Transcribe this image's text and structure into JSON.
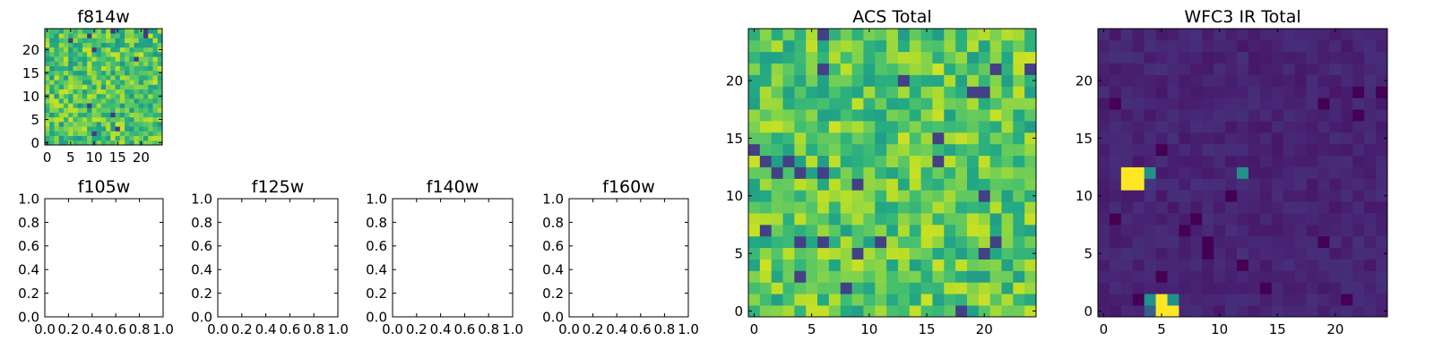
{
  "chart_data": [
    {
      "type": "heatmap",
      "title": "f814w",
      "xlabel": "",
      "ylabel": "",
      "xlim": [
        -0.5,
        24.5
      ],
      "ylim": [
        -0.5,
        24.5
      ],
      "xticks": [
        "0",
        "5",
        "10",
        "15",
        "20"
      ],
      "yticks": [
        "0",
        "5",
        "10",
        "15",
        "20"
      ],
      "colormap": "viridis",
      "grid": 25,
      "seed": 11,
      "background": 0.72,
      "noise": 0.2,
      "hotspots": []
    },
    {
      "type": "empty",
      "title": "f105w",
      "xlim": [
        0,
        1
      ],
      "ylim": [
        0,
        1
      ],
      "xticks": [
        "0.0",
        "0.2",
        "0.4",
        "0.6",
        "0.8",
        "1.0"
      ],
      "yticks": [
        "0.0",
        "0.2",
        "0.4",
        "0.6",
        "0.8",
        "1.0"
      ]
    },
    {
      "type": "empty",
      "title": "f125w",
      "xlim": [
        0,
        1
      ],
      "ylim": [
        0,
        1
      ],
      "xticks": [
        "0.0",
        "0.2",
        "0.4",
        "0.6",
        "0.8",
        "1.0"
      ],
      "yticks": [
        "0.0",
        "0.2",
        "0.4",
        "0.6",
        "0.8",
        "1.0"
      ]
    },
    {
      "type": "empty",
      "title": "f140w",
      "xlim": [
        0,
        1
      ],
      "ylim": [
        0,
        1
      ],
      "xticks": [
        "0.0",
        "0.2",
        "0.4",
        "0.6",
        "0.8",
        "1.0"
      ],
      "yticks": [
        "0.0",
        "0.2",
        "0.4",
        "0.6",
        "0.8",
        "1.0"
      ]
    },
    {
      "type": "empty",
      "title": "f160w",
      "xlim": [
        0,
        1
      ],
      "ylim": [
        0,
        1
      ],
      "xticks": [
        "0.0",
        "0.2",
        "0.4",
        "0.6",
        "0.8",
        "1.0"
      ],
      "yticks": [
        "0.0",
        "0.2",
        "0.4",
        "0.6",
        "0.8",
        "1.0"
      ]
    },
    {
      "type": "heatmap",
      "title": "ACS Total",
      "xlabel": "",
      "ylabel": "",
      "xlim": [
        -0.5,
        24.5
      ],
      "ylim": [
        -0.5,
        24.5
      ],
      "xticks": [
        "0",
        "5",
        "10",
        "15",
        "20"
      ],
      "yticks": [
        "0",
        "5",
        "10",
        "15",
        "20"
      ],
      "colormap": "viridis",
      "grid": 25,
      "seed": 29,
      "background": 0.74,
      "noise": 0.19,
      "hotspots": []
    },
    {
      "type": "heatmap",
      "title": "WFC3 IR Total",
      "xlabel": "",
      "ylabel": "",
      "xlim": [
        -0.5,
        24.5
      ],
      "ylim": [
        -0.5,
        24.5
      ],
      "xticks": [
        "0",
        "5",
        "10",
        "15",
        "20"
      ],
      "yticks": [
        "0",
        "5",
        "10",
        "15",
        "20"
      ],
      "colormap": "viridis",
      "grid": 25,
      "seed": 47,
      "background": 0.1,
      "noise": 0.035,
      "hotspots": [
        {
          "x": 2,
          "y": 11,
          "value": 1.0
        },
        {
          "x": 3,
          "y": 11,
          "value": 1.0
        },
        {
          "x": 2,
          "y": 12,
          "value": 1.0
        },
        {
          "x": 3,
          "y": 12,
          "value": 1.0
        },
        {
          "x": 4,
          "y": 12,
          "value": 0.5
        },
        {
          "x": 4,
          "y": 11,
          "value": 0.16
        },
        {
          "x": 12,
          "y": 12,
          "value": 0.5
        },
        {
          "x": 5,
          "y": 0,
          "value": 1.0
        },
        {
          "x": 5,
          "y": 1,
          "value": 1.0
        },
        {
          "x": 6,
          "y": 0,
          "value": 1.0
        },
        {
          "x": 4,
          "y": 0,
          "value": 0.3
        },
        {
          "x": 4,
          "y": 1,
          "value": 0.5
        },
        {
          "x": 6,
          "y": 1,
          "value": 0.5
        }
      ]
    }
  ]
}
